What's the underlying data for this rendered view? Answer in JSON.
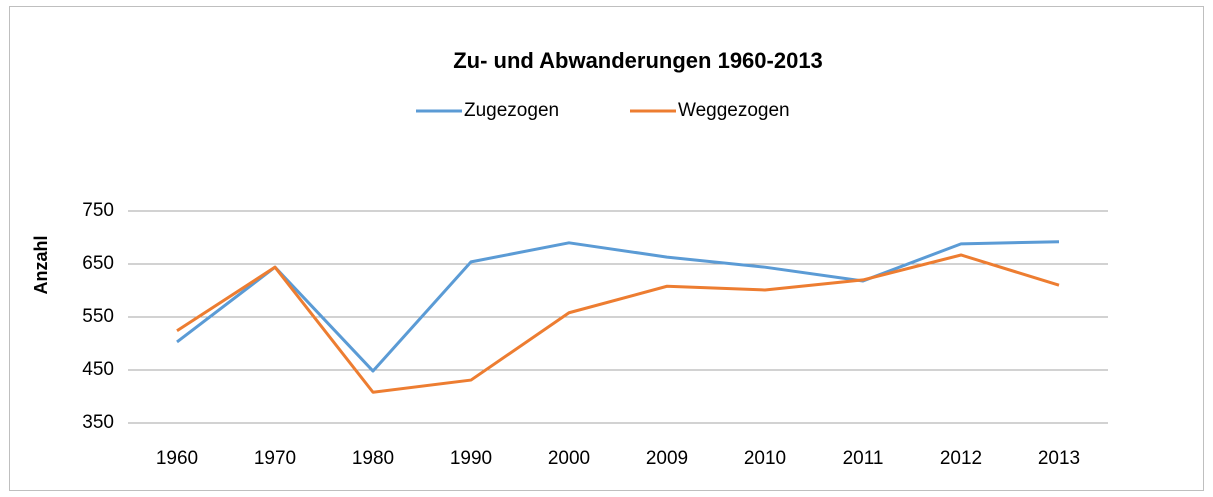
{
  "chart_data": {
    "type": "line",
    "title": "Zu- und Abwanderungen 1960-2013",
    "y_label": "Anzahl",
    "categories": [
      "1960",
      "1970",
      "1980",
      "1990",
      "2000",
      "2009",
      "2010",
      "2011",
      "2012",
      "2013"
    ],
    "series": [
      {
        "name": "Zugezogen",
        "color": "#5b9bd5",
        "values": [
          503,
          644,
          448,
          654,
          690,
          663,
          644,
          618,
          688,
          692
        ]
      },
      {
        "name": "Weggezogen",
        "color": "#ed7d31",
        "values": [
          524,
          644,
          408,
          431,
          558,
          608,
          601,
          620,
          667,
          610
        ]
      }
    ],
    "ylim": [
      350,
      750
    ],
    "yticks": [
      350,
      450,
      550,
      650,
      750
    ],
    "grid": true,
    "legend": "top"
  }
}
